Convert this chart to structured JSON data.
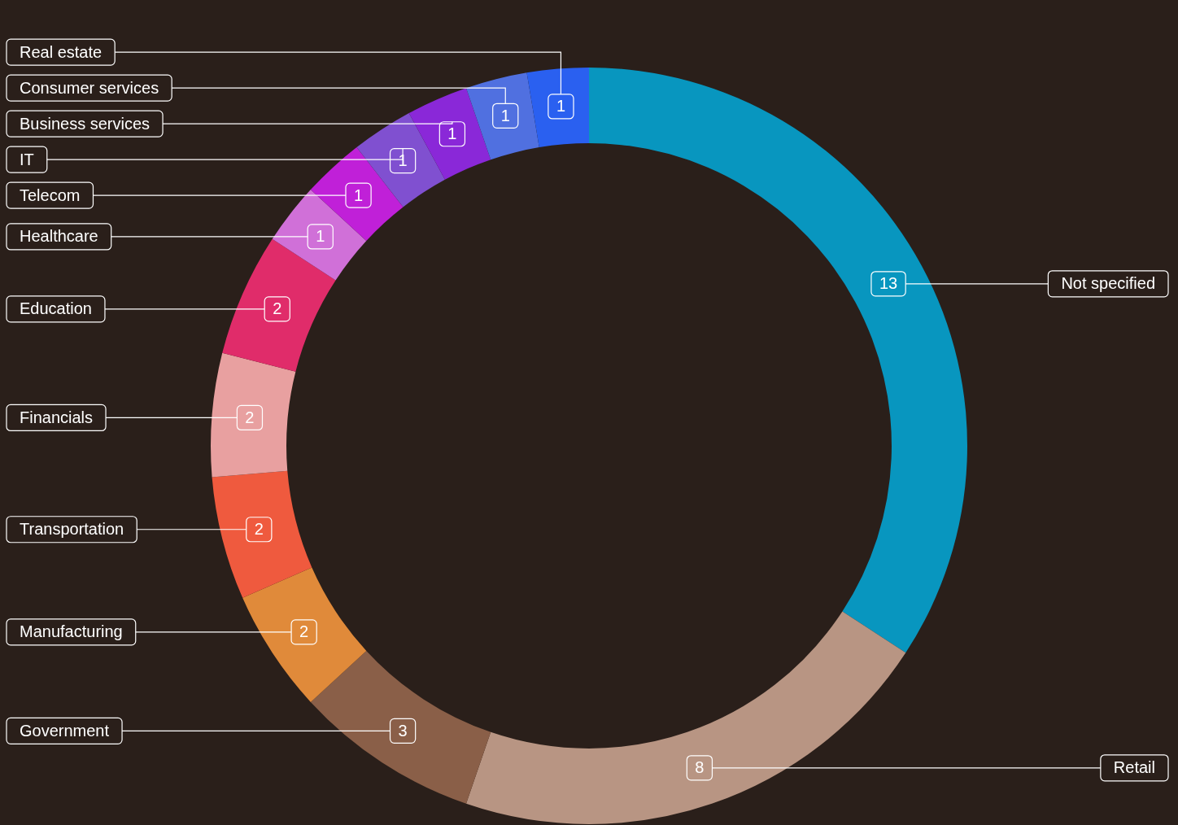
{
  "chart_data": {
    "type": "donut",
    "categories": [
      "Not specified",
      "Retail",
      "Government",
      "Manufacturing",
      "Transportation",
      "Financials",
      "Education",
      "Healthcare",
      "Telecom",
      "IT",
      "Business services",
      "Consumer services",
      "Real estate"
    ],
    "values": [
      13,
      8,
      3,
      2,
      2,
      2,
      2,
      1,
      1,
      1,
      1,
      1,
      1
    ],
    "colors": [
      "#0896bf",
      "#b89583",
      "#8a5f48",
      "#e08a3a",
      "#ef5a3e",
      "#e8a0a0",
      "#e02c6a",
      "#d070d8",
      "#c020d8",
      "#8050d0",
      "#8a28d8",
      "#5070e0",
      "#2a60f0"
    ],
    "data_labels": true,
    "legend": false
  }
}
